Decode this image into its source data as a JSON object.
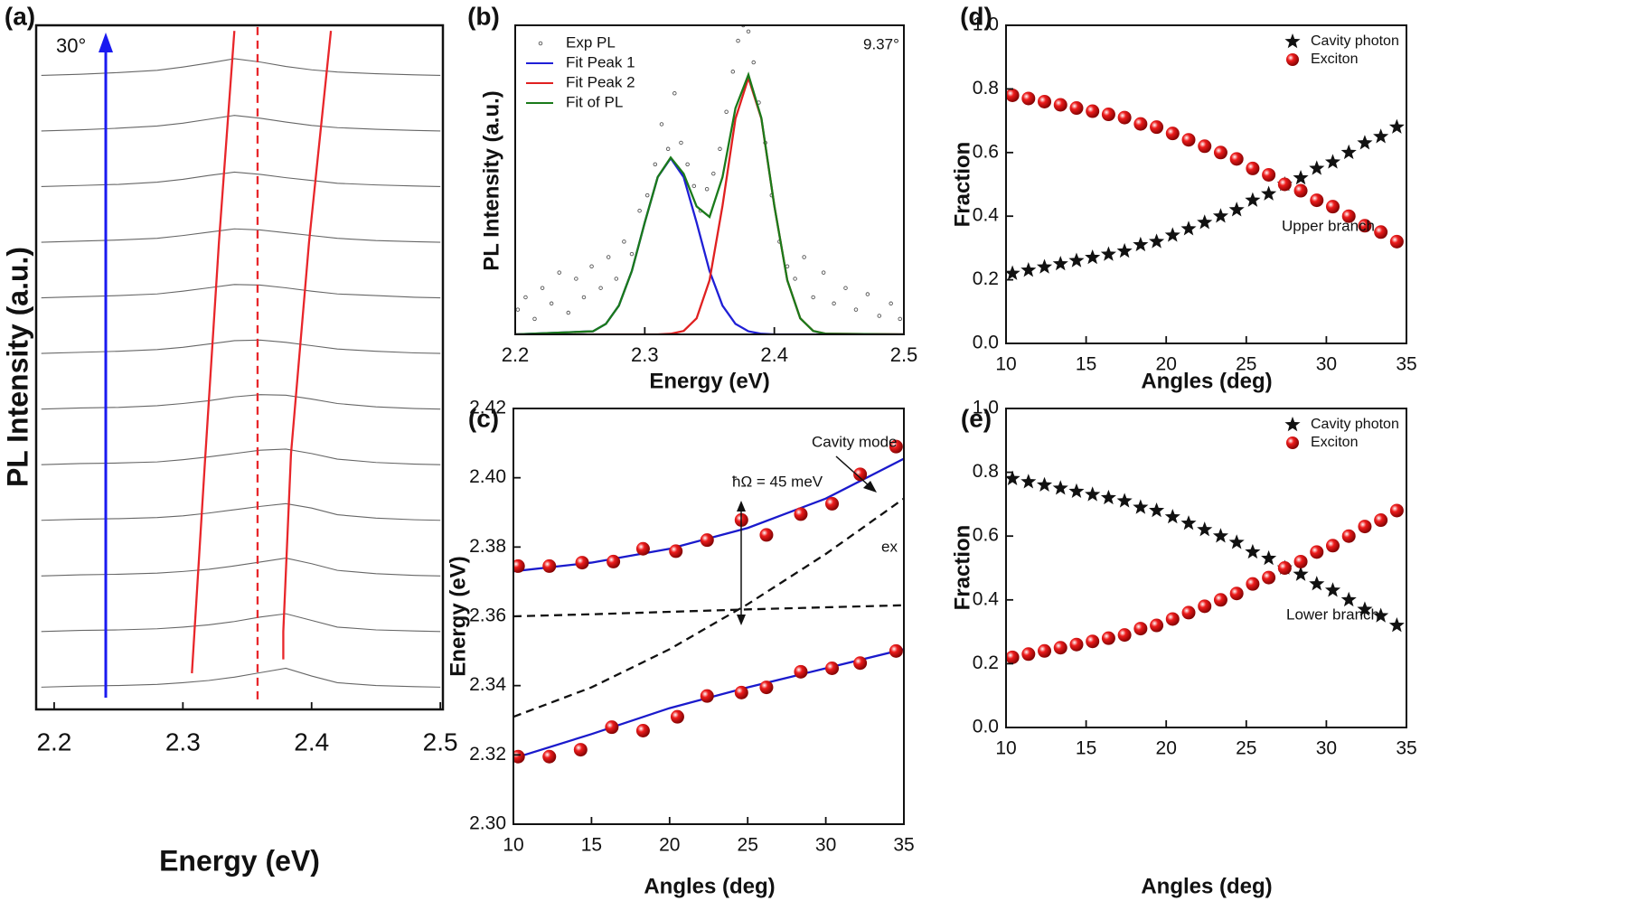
{
  "chart_data": [
    {
      "type": "line",
      "label": "(a)",
      "xlabel": "Energy (eV)",
      "ylabel": "PL Intensity (a.u.)",
      "xlim": [
        2.186,
        2.502
      ],
      "xticks": [
        2.2,
        2.3,
        2.4,
        2.5
      ],
      "ylim": [
        -0.4,
        11.9
      ],
      "x": [
        2.19,
        2.22,
        2.25,
        2.28,
        2.3,
        2.32,
        2.34,
        2.36,
        2.38,
        2.4,
        2.42,
        2.45,
        2.48,
        2.5
      ],
      "series": [
        {
          "color": "#666666",
          "values": [
            0.0,
            0.02,
            0.03,
            0.05,
            0.08,
            0.12,
            0.18,
            0.26,
            0.34,
            0.2,
            0.08,
            0.03,
            0.01,
            0.0
          ]
        },
        {
          "color": "#666666",
          "values": [
            1.0,
            1.02,
            1.03,
            1.05,
            1.08,
            1.12,
            1.18,
            1.26,
            1.32,
            1.2,
            1.08,
            1.03,
            1.01,
            1.0
          ]
        },
        {
          "color": "#666666",
          "values": [
            2.0,
            2.02,
            2.03,
            2.05,
            2.08,
            2.12,
            2.18,
            2.25,
            2.32,
            2.22,
            2.1,
            2.04,
            2.01,
            2.0
          ]
        },
        {
          "color": "#666666",
          "values": [
            3.0,
            3.02,
            3.03,
            3.05,
            3.08,
            3.13,
            3.19,
            3.25,
            3.3,
            3.22,
            3.1,
            3.04,
            3.01,
            3.0
          ]
        },
        {
          "color": "#666666",
          "values": [
            4.0,
            4.02,
            4.03,
            4.05,
            4.09,
            4.14,
            4.2,
            4.26,
            4.28,
            4.2,
            4.1,
            4.04,
            4.01,
            4.0
          ]
        },
        {
          "color": "#666666",
          "values": [
            5.0,
            5.02,
            5.03,
            5.06,
            5.1,
            5.15,
            5.22,
            5.26,
            5.25,
            5.18,
            5.1,
            5.04,
            5.01,
            5.0
          ]
        },
        {
          "color": "#666666",
          "values": [
            6.0,
            6.02,
            6.04,
            6.07,
            6.11,
            6.17,
            6.23,
            6.24,
            6.2,
            6.14,
            6.08,
            6.04,
            6.01,
            6.0
          ]
        },
        {
          "color": "#666666",
          "values": [
            7.0,
            7.02,
            7.04,
            7.07,
            7.12,
            7.18,
            7.24,
            7.23,
            7.18,
            7.12,
            7.07,
            7.04,
            7.01,
            7.0
          ]
        },
        {
          "color": "#666666",
          "values": [
            8.0,
            8.02,
            8.04,
            8.07,
            8.12,
            8.18,
            8.24,
            8.22,
            8.17,
            8.12,
            8.07,
            8.03,
            8.01,
            8.0
          ]
        },
        {
          "color": "#666666",
          "values": [
            9.0,
            9.02,
            9.04,
            9.08,
            9.13,
            9.2,
            9.26,
            9.22,
            9.16,
            9.11,
            9.06,
            9.03,
            9.01,
            9.0
          ]
        },
        {
          "color": "#666666",
          "values": [
            10.0,
            10.02,
            10.05,
            10.09,
            10.14,
            10.21,
            10.28,
            10.23,
            10.16,
            10.1,
            10.06,
            10.03,
            10.01,
            10.0
          ]
        },
        {
          "color": "#666666",
          "values": [
            11.0,
            11.02,
            11.05,
            11.09,
            11.15,
            11.22,
            11.3,
            11.24,
            11.16,
            11.1,
            11.06,
            11.03,
            11.01,
            11.0
          ]
        },
        {
          "color": "#e8262a",
          "x": [
            2.307,
            2.317,
            2.328,
            2.34
          ],
          "values": [
            0.25,
            4.0,
            8.0,
            11.8
          ]
        },
        {
          "color": "#e8262a",
          "x": [
            2.378,
            2.378,
            2.384,
            2.398,
            2.415
          ],
          "values": [
            0.5,
            1.0,
            4.2,
            8.0,
            11.8
          ]
        },
        {
          "color": "#e8262a",
          "dash": true,
          "x": [
            2.358,
            2.358
          ],
          "values": [
            -0.22,
            11.9
          ]
        }
      ],
      "annotations": [
        "30°"
      ],
      "arrow_color": "#1a1af0"
    },
    {
      "type": "line",
      "label": "(b)",
      "xlabel": "Energy (eV)",
      "ylabel": "PL Intensity (a.u.)",
      "xlim": [
        2.2,
        2.5
      ],
      "xticks": [
        2.2,
        2.3,
        2.4,
        2.5
      ],
      "ylim": [
        0,
        1
      ],
      "legend": "upper left",
      "series": [
        {
          "name": "Exp PL",
          "color": "#555555",
          "marker": "circle-open",
          "x": [
            2.202,
            2.208,
            2.215,
            2.221,
            2.228,
            2.234,
            2.241,
            2.247,
            2.253,
            2.259,
            2.266,
            2.272,
            2.278,
            2.284,
            2.29,
            2.296,
            2.302,
            2.308,
            2.313,
            2.318,
            2.323,
            2.328,
            2.333,
            2.338,
            2.343,
            2.348,
            2.353,
            2.358,
            2.363,
            2.368,
            2.372,
            2.376,
            2.38,
            2.384,
            2.388,
            2.393,
            2.398,
            2.404,
            2.41,
            2.416,
            2.423,
            2.43,
            2.438,
            2.446,
            2.455,
            2.463,
            2.472,
            2.481,
            2.49,
            2.497
          ],
          "values": [
            0.08,
            0.12,
            0.05,
            0.15,
            0.1,
            0.2,
            0.07,
            0.18,
            0.12,
            0.22,
            0.15,
            0.25,
            0.18,
            0.3,
            0.26,
            0.4,
            0.45,
            0.55,
            0.68,
            0.6,
            0.78,
            0.62,
            0.55,
            0.48,
            0.4,
            0.47,
            0.52,
            0.6,
            0.72,
            0.85,
            0.95,
            1.0,
            0.98,
            0.88,
            0.75,
            0.62,
            0.45,
            0.3,
            0.22,
            0.18,
            0.25,
            0.12,
            0.2,
            0.1,
            0.15,
            0.08,
            0.13,
            0.06,
            0.1,
            0.05
          ]
        },
        {
          "name": "Fit Peak 1",
          "color": "#1f1fd6",
          "x": [
            2.2,
            2.26,
            2.27,
            2.28,
            2.29,
            2.3,
            2.31,
            2.32,
            2.33,
            2.34,
            2.35,
            2.36,
            2.37,
            2.38,
            2.39,
            2.4,
            2.41,
            2.42,
            2.43,
            2.44,
            2.5
          ],
          "values": [
            0,
            0.01,
            0.034,
            0.093,
            0.205,
            0.362,
            0.509,
            0.57,
            0.509,
            0.362,
            0.205,
            0.093,
            0.034,
            0.01,
            0.002,
            0,
            0,
            0,
            0,
            0,
            0
          ]
        },
        {
          "name": "Fit Peak 2",
          "color": "#e02020",
          "x": [
            2.2,
            2.26,
            2.27,
            2.28,
            2.29,
            2.3,
            2.31,
            2.32,
            2.33,
            2.34,
            2.35,
            2.36,
            2.37,
            2.38,
            2.39,
            2.4,
            2.41,
            2.42,
            2.43,
            2.44,
            2.5
          ],
          "values": [
            0,
            0,
            0,
            0,
            0,
            0,
            0,
            0.002,
            0.011,
            0.052,
            0.175,
            0.416,
            0.698,
            0.83,
            0.698,
            0.416,
            0.175,
            0.052,
            0.011,
            0.002,
            0
          ]
        },
        {
          "name": "Fit of PL",
          "color": "#1a7a1a",
          "x": [
            2.2,
            2.26,
            2.27,
            2.28,
            2.29,
            2.3,
            2.31,
            2.32,
            2.33,
            2.34,
            2.35,
            2.36,
            2.37,
            2.38,
            2.39,
            2.4,
            2.41,
            2.42,
            2.43,
            2.44,
            2.5
          ],
          "values": [
            0,
            0.01,
            0.034,
            0.093,
            0.205,
            0.362,
            0.509,
            0.572,
            0.52,
            0.414,
            0.38,
            0.509,
            0.732,
            0.84,
            0.7,
            0.416,
            0.175,
            0.052,
            0.011,
            0.002,
            0
          ]
        }
      ],
      "annotations": [
        "9.37°"
      ]
    },
    {
      "type": "scatter",
      "label": "(c)",
      "xlabel": "Angles (deg)",
      "ylabel": "Energy (eV)",
      "xlim": [
        10,
        35
      ],
      "xticks": [
        10,
        15,
        20,
        25,
        30,
        35
      ],
      "ylim": [
        2.3,
        2.42
      ],
      "yticks": [
        {
          "value": 2.3,
          "label": "2.30"
        },
        2.32,
        2.34,
        2.36,
        2.38,
        {
          "value": 2.4,
          "label": "2.40"
        },
        2.42
      ],
      "series": [
        {
          "color": "#1a1acc",
          "x": [
            10,
            15,
            20,
            25,
            30,
            35
          ],
          "values": [
            2.373,
            2.3755,
            2.3795,
            2.3855,
            2.394,
            2.4055
          ]
        },
        {
          "color": "#1a1acc",
          "x": [
            10,
            15,
            20,
            25,
            30,
            35
          ],
          "values": [
            2.319,
            2.326,
            2.3335,
            2.3395,
            2.345,
            2.3505
          ]
        },
        {
          "color": "#111111",
          "dash": true,
          "x": [
            10,
            15,
            20,
            25,
            30,
            35
          ],
          "values": [
            2.331,
            2.3395,
            2.3505,
            2.3635,
            2.378,
            2.394
          ]
        },
        {
          "color": "#111111",
          "dash": true,
          "x": [
            10,
            15,
            20,
            25,
            30,
            35
          ],
          "values": [
            2.36,
            2.3606,
            2.3613,
            2.362,
            2.3626,
            2.3632
          ]
        },
        {
          "color": "#ee1c1c",
          "marker": "sphere",
          "x": [
            10.3,
            12.3,
            14.4,
            16.4,
            18.3,
            20.4,
            22.4,
            24.6,
            26.2,
            28.4,
            30.4,
            32.2,
            34.5
          ],
          "values": [
            2.3745,
            2.3745,
            2.3755,
            2.3758,
            2.3795,
            2.3788,
            2.382,
            2.3878,
            2.3835,
            2.3895,
            2.3925,
            2.401,
            2.409
          ]
        },
        {
          "color": "#ee1c1c",
          "marker": "sphere",
          "x": [
            10.3,
            12.3,
            14.3,
            16.3,
            18.3,
            20.5,
            22.4,
            24.6,
            26.2,
            28.4,
            30.4,
            32.2,
            34.5
          ],
          "values": [
            2.3195,
            2.3195,
            2.3215,
            2.328,
            2.327,
            2.331,
            2.337,
            2.338,
            2.3395,
            2.344,
            2.345,
            2.3465,
            2.35
          ]
        }
      ],
      "annotations": [
        "Cavity mode",
        "ħΩ = 45 meV",
        "ex"
      ]
    },
    {
      "type": "scatter",
      "label": "(d)",
      "xlabel": "Angles (deg)",
      "ylabel": "Fraction",
      "xlim": [
        10,
        35
      ],
      "xticks": [
        10,
        15,
        20,
        25,
        30,
        35
      ],
      "ylim": [
        0,
        1
      ],
      "yticks": [
        {
          "value": 0,
          "label": "0.0"
        },
        0.2,
        0.4,
        0.6,
        0.8,
        {
          "value": 1,
          "label": "1.0"
        }
      ],
      "legend": "upper right",
      "x": [
        10.4,
        11.4,
        12.4,
        13.4,
        14.4,
        15.4,
        16.4,
        17.4,
        18.4,
        19.4,
        20.4,
        21.4,
        22.4,
        23.4,
        24.4,
        25.4,
        26.4,
        27.4,
        28.4,
        29.4,
        30.4,
        31.4,
        32.4,
        33.4,
        34.4
      ],
      "series": [
        {
          "name": "Cavity photon",
          "color": "#111111",
          "marker": "star",
          "values": [
            0.22,
            0.23,
            0.24,
            0.25,
            0.26,
            0.27,
            0.28,
            0.29,
            0.31,
            0.32,
            0.34,
            0.36,
            0.38,
            0.4,
            0.42,
            0.45,
            0.47,
            0.5,
            0.52,
            0.55,
            0.57,
            0.6,
            0.63,
            0.65,
            0.68
          ]
        },
        {
          "name": "Exciton",
          "color": "#ee1c1c",
          "marker": "sphere",
          "values": [
            0.78,
            0.77,
            0.76,
            0.75,
            0.74,
            0.73,
            0.72,
            0.71,
            0.69,
            0.68,
            0.66,
            0.64,
            0.62,
            0.6,
            0.58,
            0.55,
            0.53,
            0.5,
            0.48,
            0.45,
            0.43,
            0.4,
            0.37,
            0.35,
            0.32
          ]
        }
      ],
      "annotations": [
        "Upper branch"
      ]
    },
    {
      "type": "scatter",
      "label": "(e)",
      "xlabel": "Angles (deg)",
      "ylabel": "Fraction",
      "xlim": [
        10,
        35
      ],
      "xticks": [
        10,
        15,
        20,
        25,
        30,
        35
      ],
      "ylim": [
        0,
        1
      ],
      "yticks": [
        {
          "value": 0,
          "label": "0.0"
        },
        0.2,
        0.4,
        0.6,
        0.8,
        {
          "value": 1,
          "label": "1.0"
        }
      ],
      "legend": "upper right",
      "x": [
        10.4,
        11.4,
        12.4,
        13.4,
        14.4,
        15.4,
        16.4,
        17.4,
        18.4,
        19.4,
        20.4,
        21.4,
        22.4,
        23.4,
        24.4,
        25.4,
        26.4,
        27.4,
        28.4,
        29.4,
        30.4,
        31.4,
        32.4,
        33.4,
        34.4
      ],
      "series": [
        {
          "name": "Cavity photon",
          "color": "#111111",
          "marker": "star",
          "values": [
            0.78,
            0.77,
            0.76,
            0.75,
            0.74,
            0.73,
            0.72,
            0.71,
            0.69,
            0.68,
            0.66,
            0.64,
            0.62,
            0.6,
            0.58,
            0.55,
            0.53,
            0.5,
            0.48,
            0.45,
            0.43,
            0.4,
            0.37,
            0.35,
            0.32
          ]
        },
        {
          "name": "Exciton",
          "color": "#ee1c1c",
          "marker": "sphere",
          "values": [
            0.22,
            0.23,
            0.24,
            0.25,
            0.26,
            0.27,
            0.28,
            0.29,
            0.31,
            0.32,
            0.34,
            0.36,
            0.38,
            0.4,
            0.42,
            0.45,
            0.47,
            0.5,
            0.52,
            0.55,
            0.57,
            0.6,
            0.63,
            0.65,
            0.68
          ]
        }
      ],
      "annotations": [
        "Lower branch"
      ]
    }
  ]
}
